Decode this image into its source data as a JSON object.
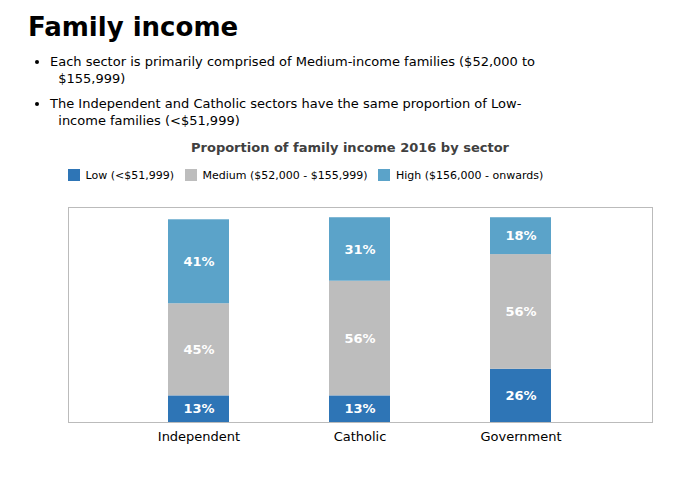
{
  "chart_data": {
    "type": "bar",
    "title": "Family income",
    "annotations": [
      "Each sector is primarily comprised of Medium-income families ($52,000 to\n  $155,999)",
      "The Independent and Catholic sectors have the same proportion of Low-\n  income families (<$51,999)"
    ],
    "subtitle": "Proportion of family income 2016 by sector",
    "categories": [
      "Independent",
      "Catholic",
      "Government"
    ],
    "series": [
      {
        "name": "Low (<$51,999)",
        "color": "#2E75B6",
        "values": [
          13,
          13,
          26
        ],
        "value_labels": [
          "13%",
          "13%",
          "26%"
        ]
      },
      {
        "name": "Medium ($52,000 - $155,999)",
        "color": "#BDBDBD",
        "values": [
          45,
          56,
          56
        ],
        "value_labels": [
          "45%",
          "56%",
          "56%"
        ]
      },
      {
        "name": "High ($156,000 - onwards)",
        "color": "#5BA3C9",
        "values": [
          41,
          31,
          18
        ],
        "value_labels": [
          "41%",
          "31%",
          "18%"
        ]
      }
    ],
    "stacked": true,
    "data_labels": true,
    "ylim": [
      0,
      105
    ],
    "tick_labels": "x",
    "grid": false,
    "legend": "upper left"
  }
}
